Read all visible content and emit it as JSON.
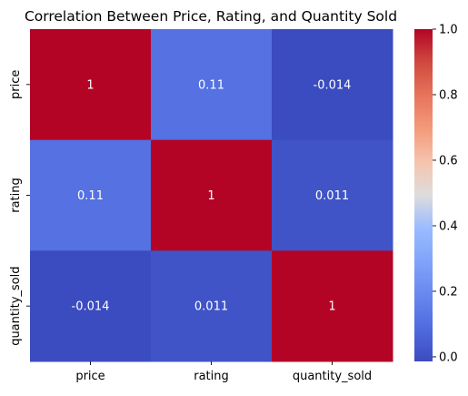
{
  "chart_data": {
    "type": "heatmap",
    "title": "Correlation Between Price, Rating, and Quantity Sold",
    "xlabel": "",
    "ylabel": "",
    "x_categories": [
      "price",
      "rating",
      "quantity_sold"
    ],
    "y_categories": [
      "price",
      "rating",
      "quantity_sold"
    ],
    "values": [
      [
        1,
        0.11,
        -0.014
      ],
      [
        0.11,
        1,
        0.011
      ],
      [
        -0.014,
        0.011,
        1
      ]
    ],
    "value_labels": [
      [
        "1",
        "0.11",
        "-0.014"
      ],
      [
        "0.11",
        "1",
        "0.011"
      ],
      [
        "-0.014",
        "0.011",
        "1"
      ]
    ],
    "colormap": "coolwarm",
    "colorbar": {
      "min": -0.014,
      "max": 1,
      "ticks": [
        0.0,
        0.2,
        0.4,
        0.6,
        0.8,
        1.0
      ],
      "tick_labels": [
        "0.0",
        "0.2",
        "0.4",
        "0.6",
        "0.8",
        "1.0"
      ]
    },
    "annotation_color": "#ffffff"
  }
}
